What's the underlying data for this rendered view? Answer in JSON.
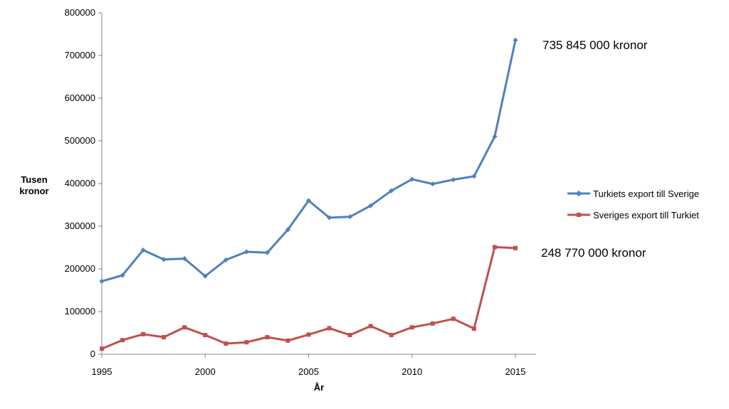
{
  "chart_data": {
    "type": "line",
    "title": "",
    "xlabel": "År",
    "ylabel_lines": [
      "Tusen",
      "kronor"
    ],
    "x": [
      1995,
      1996,
      1997,
      1998,
      1999,
      2000,
      2001,
      2002,
      2003,
      2004,
      2005,
      2006,
      2007,
      2008,
      2009,
      2010,
      2011,
      2012,
      2013,
      2014,
      2015
    ],
    "xlim": [
      1995,
      2016
    ],
    "ylim": [
      0,
      800000
    ],
    "xticks": [
      "1995",
      "2000",
      "2005",
      "2010",
      "2015"
    ],
    "yticks": [
      "0",
      "100000",
      "200000",
      "300000",
      "400000",
      "500000",
      "600000",
      "700000",
      "800000"
    ],
    "grid": false,
    "legend_position": "right",
    "series": [
      {
        "name": "Turkiets export till Sverige",
        "color": "#4F81BD",
        "marker": "diamond",
        "values": [
          171000,
          185000,
          244000,
          222000,
          224000,
          183000,
          221000,
          240000,
          238000,
          292000,
          360000,
          320000,
          322000,
          348000,
          383000,
          410000,
          399000,
          409000,
          417000,
          510000,
          735845
        ]
      },
      {
        "name": "Sveriges export till Turkiet",
        "color": "#C0504D",
        "marker": "square",
        "values": [
          13000,
          33000,
          47000,
          40000,
          63000,
          45000,
          25000,
          28000,
          40000,
          32000,
          46000,
          61000,
          45000,
          66000,
          45000,
          63000,
          72000,
          83000,
          60000,
          251000,
          248770
        ]
      }
    ],
    "annotations": [
      {
        "text": "735 845 000 kronor",
        "series": 0
      },
      {
        "text": "248 770 000 kronor",
        "series": 1
      }
    ]
  }
}
